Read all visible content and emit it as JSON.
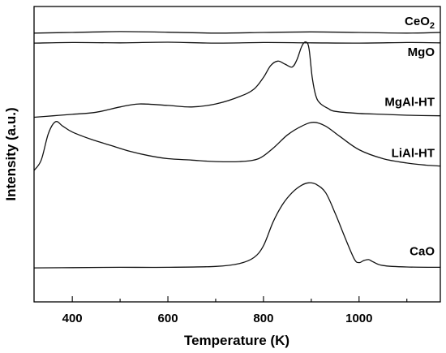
{
  "chart_data": {
    "type": "line",
    "xlabel": "Temperature (K)",
    "ylabel": "Intensity (a.u.)",
    "xlim": [
      320,
      1170
    ],
    "ylim": [
      0,
      100
    ],
    "x_ticks": [
      400,
      600,
      800,
      1000
    ],
    "x_tick_labels": [
      "400",
      "600",
      "800",
      "1000"
    ],
    "x_minor_ticks": [
      500,
      700,
      900,
      1100
    ],
    "y_ticks_shown": false,
    "grid": false,
    "legend": "none",
    "series": [
      {
        "name": "CeO",
        "name_subscript": "2",
        "x": [
          320,
          400,
          500,
          600,
          700,
          800,
          900,
          1000,
          1100,
          1170
        ],
        "y": [
          91.0,
          91.2,
          91.5,
          91.3,
          91.0,
          91.2,
          91.4,
          91.2,
          91.0,
          91.2
        ]
      },
      {
        "name": "MgO",
        "x": [
          320,
          400,
          500,
          600,
          700,
          800,
          900,
          1000,
          1100,
          1170
        ],
        "y": [
          87.6,
          87.8,
          87.7,
          87.9,
          87.6,
          87.8,
          87.7,
          87.6,
          87.8,
          87.7
        ]
      },
      {
        "name": "MgAl-HT",
        "x": [
          320,
          360,
          400,
          450,
          500,
          540,
          600,
          650,
          700,
          750,
          780,
          800,
          815,
          830,
          845,
          860,
          870,
          880,
          888,
          895,
          902,
          910,
          920,
          935,
          950,
          1000,
          1050,
          1100,
          1170
        ],
        "y": [
          62.5,
          63.0,
          63.5,
          64.2,
          66.0,
          67.0,
          66.5,
          66.0,
          67.0,
          69.5,
          72.0,
          76.0,
          80.0,
          81.5,
          80.5,
          79.5,
          82.0,
          86.5,
          88.0,
          86.0,
          76.0,
          69.5,
          67.0,
          65.5,
          64.5,
          63.8,
          63.5,
          63.2,
          63.0
        ]
      },
      {
        "name": "LiAl-HT",
        "x": [
          320,
          335,
          350,
          365,
          380,
          400,
          440,
          480,
          520,
          560,
          600,
          650,
          700,
          750,
          790,
          820,
          850,
          880,
          905,
          930,
          960,
          1000,
          1050,
          1100,
          1140,
          1170
        ],
        "y": [
          44.5,
          48.0,
          57.0,
          61.0,
          59.5,
          57.5,
          55.0,
          53.0,
          51.0,
          49.5,
          48.5,
          48.0,
          47.5,
          47.5,
          48.5,
          52.0,
          56.5,
          59.5,
          60.8,
          59.5,
          56.0,
          51.5,
          48.5,
          47.0,
          46.3,
          46.0
        ]
      },
      {
        "name": "CaO",
        "x": [
          320,
          400,
          500,
          600,
          700,
          750,
          780,
          800,
          820,
          840,
          860,
          880,
          895,
          910,
          930,
          950,
          970,
          990,
          1000,
          1010,
          1020,
          1030,
          1050,
          1100,
          1170
        ],
        "y": [
          11.5,
          11.6,
          11.7,
          11.7,
          12.0,
          13.0,
          15.0,
          19.0,
          27.0,
          33.0,
          37.0,
          39.5,
          40.3,
          39.8,
          37.0,
          30.0,
          22.0,
          14.5,
          13.3,
          14.0,
          14.3,
          13.5,
          12.3,
          11.8,
          11.7
        ]
      }
    ]
  }
}
